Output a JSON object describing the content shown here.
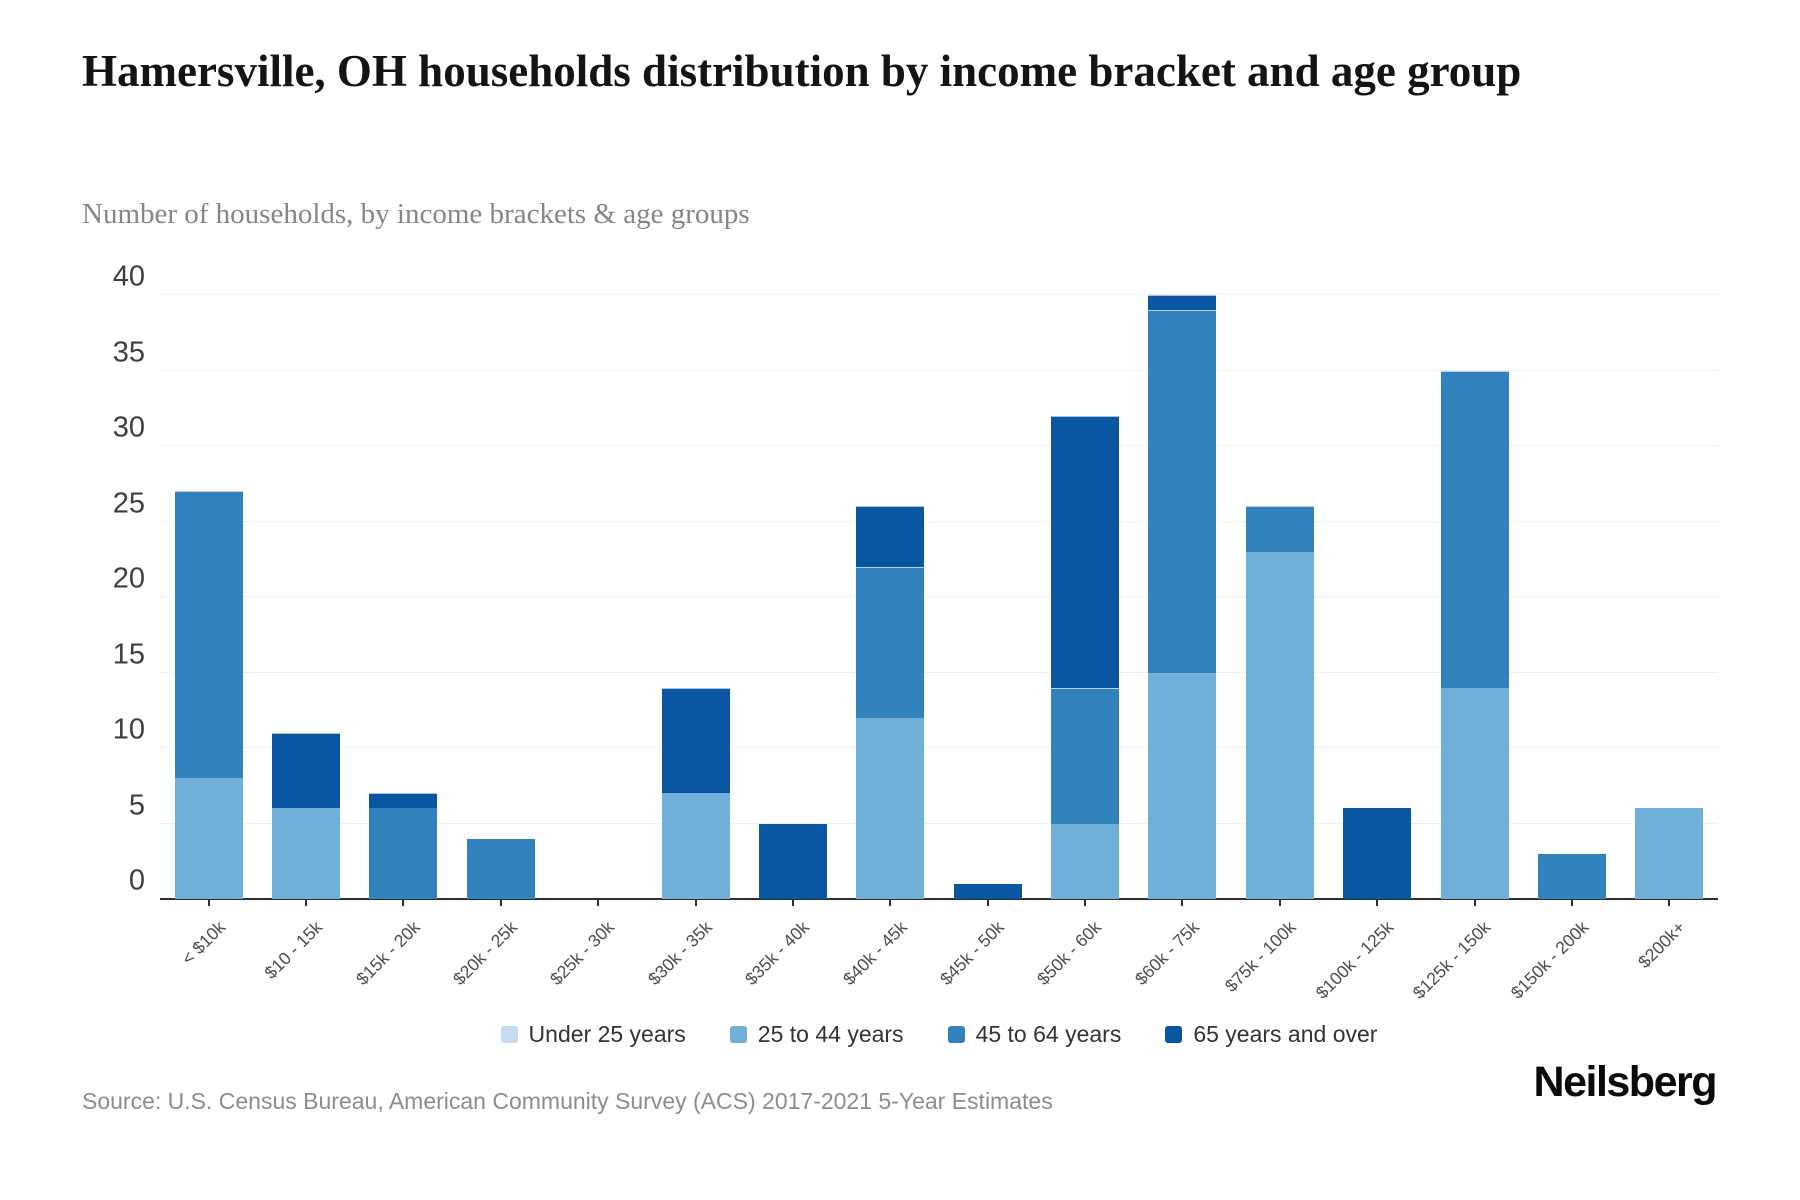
{
  "page": {
    "title": "Hamersville, OH households distribution by income bracket and age group",
    "subtitle": "Number of households, by income brackets & age groups",
    "source": "Source: U.S. Census Bureau, American Community Survey (ACS) 2017-2021 5-Year Estimates",
    "logo": "Neilsberg"
  },
  "colors": {
    "under_25": "#c6dbef",
    "age_25_44": "#6fafd8",
    "age_45_64": "#3182bd",
    "age_65_over": "#0b56a2",
    "gridline": "#efefef",
    "axis_line": "#2e2e2e",
    "title_text": "#141414",
    "subtitle_text": "#868686",
    "tick_text": "#3f3f3f"
  },
  "chart_data": {
    "type": "bar",
    "stacked": true,
    "title": "Hamersville, OH households distribution by income bracket and age group",
    "subtitle": "Number of households, by income brackets & age groups",
    "categories": [
      "< $10k",
      "$10 - 15k",
      "$15k - 20k",
      "$20k - 25k",
      "$25k - 30k",
      "$30k - 35k",
      "$35k - 40k",
      "$40k - 45k",
      "$45k - 50k",
      "$50k - 60k",
      "$60k - 75k",
      "$75k - 100k",
      "$100k - 125k",
      "$125k - 150k",
      "$150k - 200k",
      "$200k+"
    ],
    "series": [
      {
        "name": "Under 25 years",
        "color": "#c6dbef",
        "values": [
          0,
          0,
          0,
          0,
          0,
          0,
          0,
          0,
          0,
          0,
          0,
          0,
          0,
          0,
          0,
          0
        ]
      },
      {
        "name": "25 to 44 years",
        "color": "#6fafd8",
        "values": [
          8,
          6,
          0,
          0,
          0,
          7,
          0,
          12,
          0,
          5,
          15,
          23,
          0,
          14,
          0,
          6
        ]
      },
      {
        "name": "45 to 64 years",
        "color": "#3182bd",
        "values": [
          19,
          0,
          6,
          4,
          0,
          0,
          0,
          10,
          0,
          9,
          24,
          3,
          0,
          21,
          3,
          0
        ]
      },
      {
        "name": "65 years and over",
        "color": "#0b56a2",
        "values": [
          0,
          5,
          1,
          0,
          0,
          7,
          5,
          4,
          1,
          18,
          1,
          0,
          6,
          0,
          0,
          0
        ]
      }
    ],
    "stack_totals": [
      27,
      11,
      7,
      4,
      0,
      14,
      5,
      26,
      1,
      32,
      40,
      26,
      6,
      35,
      3,
      6
    ],
    "xlabel": "",
    "ylabel": "",
    "ylim": [
      0,
      40
    ],
    "yticks": [
      0,
      5,
      10,
      15,
      20,
      25,
      30,
      35,
      40
    ],
    "grid": true,
    "legend_position": "bottom"
  }
}
